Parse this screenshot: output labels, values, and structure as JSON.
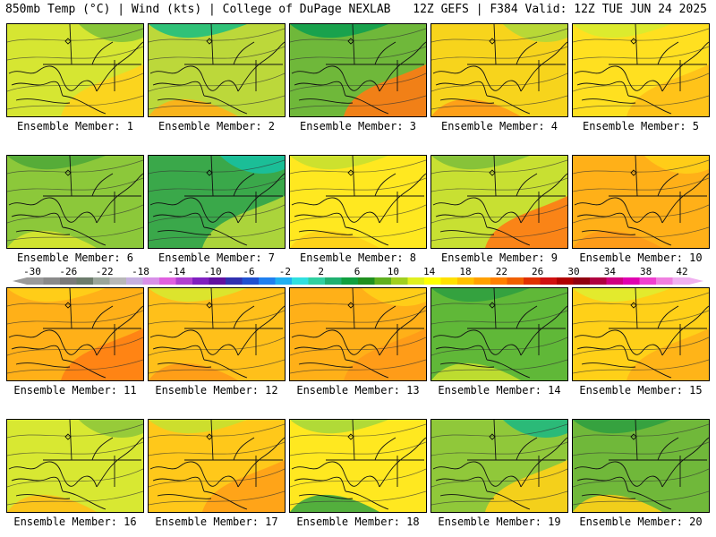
{
  "header": {
    "title": "850mb Temp (°C) | Wind (kts) | College of DuPage NEXLAB",
    "run_info": "12Z GEFS | F384 Valid: 12Z TUE JUN 24 2025"
  },
  "colorbar": {
    "labels": [
      "-30",
      "-26",
      "-22",
      "-18",
      "-14",
      "-10",
      "-6",
      "-2",
      "2",
      "6",
      "10",
      "14",
      "18",
      "22",
      "26",
      "30",
      "34",
      "38",
      "42"
    ],
    "colors": [
      "#9a9a9a",
      "#8a8a8a",
      "#7a7a7a",
      "#6c7c6c",
      "#9aa59a",
      "#b8b8b8",
      "#c6b0e0",
      "#d890e8",
      "#e060e0",
      "#b040d0",
      "#8020c0",
      "#6010a0",
      "#3030b0",
      "#2050d0",
      "#2080f0",
      "#20b0f0",
      "#30e0e0",
      "#30d0a0",
      "#20b070",
      "#10a040",
      "#209020",
      "#60b020",
      "#a0d020",
      "#e0f020",
      "#ffff00",
      "#ffe000",
      "#ffc000",
      "#ffa000",
      "#ff8000",
      "#f06000",
      "#e03000",
      "#d01010",
      "#b00000",
      "#900010",
      "#b00040",
      "#d00080",
      "#e000b0",
      "#f040d0",
      "#f080e0",
      "#f0b0f0"
    ]
  },
  "members": [
    {
      "label": "Ensemble Member: 1",
      "palette": {
        "bg": "#d6e632",
        "a": "#ffd21c",
        "b": "#80c23a"
      }
    },
    {
      "label": "Ensemble Member: 2",
      "palette": {
        "bg": "#bcd83a",
        "a": "#ffb018",
        "b": "#20c080"
      }
    },
    {
      "label": "Ensemble Member: 3",
      "palette": {
        "bg": "#6fb83a",
        "a": "#ff7a14",
        "b": "#10a050"
      }
    },
    {
      "label": "Ensemble Member: 4",
      "palette": {
        "bg": "#f7d41c",
        "a": "#ff9a18",
        "b": "#b0d83a"
      }
    },
    {
      "label": "Ensemble Member: 5",
      "palette": {
        "bg": "#ffe020",
        "a": "#ffc018",
        "b": "#d8ec30"
      }
    },
    {
      "label": "Ensemble Member: 6",
      "palette": {
        "bg": "#8cc83a",
        "a": "#d8e630",
        "b": "#50a838"
      }
    },
    {
      "label": "Ensemble Member: 7",
      "palette": {
        "bg": "#3aa84a",
        "a": "#b8d83a",
        "b": "#18c0a0"
      }
    },
    {
      "label": "Ensemble Member: 8",
      "palette": {
        "bg": "#ffe820",
        "a": "#ffd018",
        "b": "#c8e030"
      }
    },
    {
      "label": "Ensemble Member: 9",
      "palette": {
        "bg": "#c8e032",
        "a": "#ff7a14",
        "b": "#80c03a"
      }
    },
    {
      "label": "Ensemble Member: 10",
      "palette": {
        "bg": "#ffb018",
        "a": "#ff9a18",
        "b": "#ffd018"
      }
    },
    {
      "label": "Ensemble Member: 11",
      "palette": {
        "bg": "#ffb018",
        "a": "#ff8014",
        "b": "#ffd018"
      }
    },
    {
      "label": "Ensemble Member: 12",
      "palette": {
        "bg": "#ffc01a",
        "a": "#ff9a18",
        "b": "#d8e830"
      }
    },
    {
      "label": "Ensemble Member: 13",
      "palette": {
        "bg": "#ffb018",
        "a": "#ff9a18",
        "b": "#ffd018"
      }
    },
    {
      "label": "Ensemble Member: 14",
      "palette": {
        "bg": "#60b838",
        "a": "#c8e030",
        "b": "#30a040"
      }
    },
    {
      "label": "Ensemble Member: 15",
      "palette": {
        "bg": "#ffd018",
        "a": "#ffb018",
        "b": "#e0ec30"
      }
    },
    {
      "label": "Ensemble Member: 16",
      "palette": {
        "bg": "#d8e832",
        "a": "#ffc018",
        "b": "#90c83a"
      }
    },
    {
      "label": "Ensemble Member: 17",
      "palette": {
        "bg": "#ffc81a",
        "a": "#ffa018",
        "b": "#c8e030"
      }
    },
    {
      "label": "Ensemble Member: 18",
      "palette": {
        "bg": "#ffe820",
        "a": "#40a840",
        "b": "#a8d83a"
      }
    },
    {
      "label": "Ensemble Member: 19",
      "palette": {
        "bg": "#90c83a",
        "a": "#ffd018",
        "b": "#20b880"
      }
    },
    {
      "label": "Ensemble Member: 20",
      "palette": {
        "bg": "#70b83a",
        "a": "#ffd018",
        "b": "#30a040"
      }
    }
  ]
}
